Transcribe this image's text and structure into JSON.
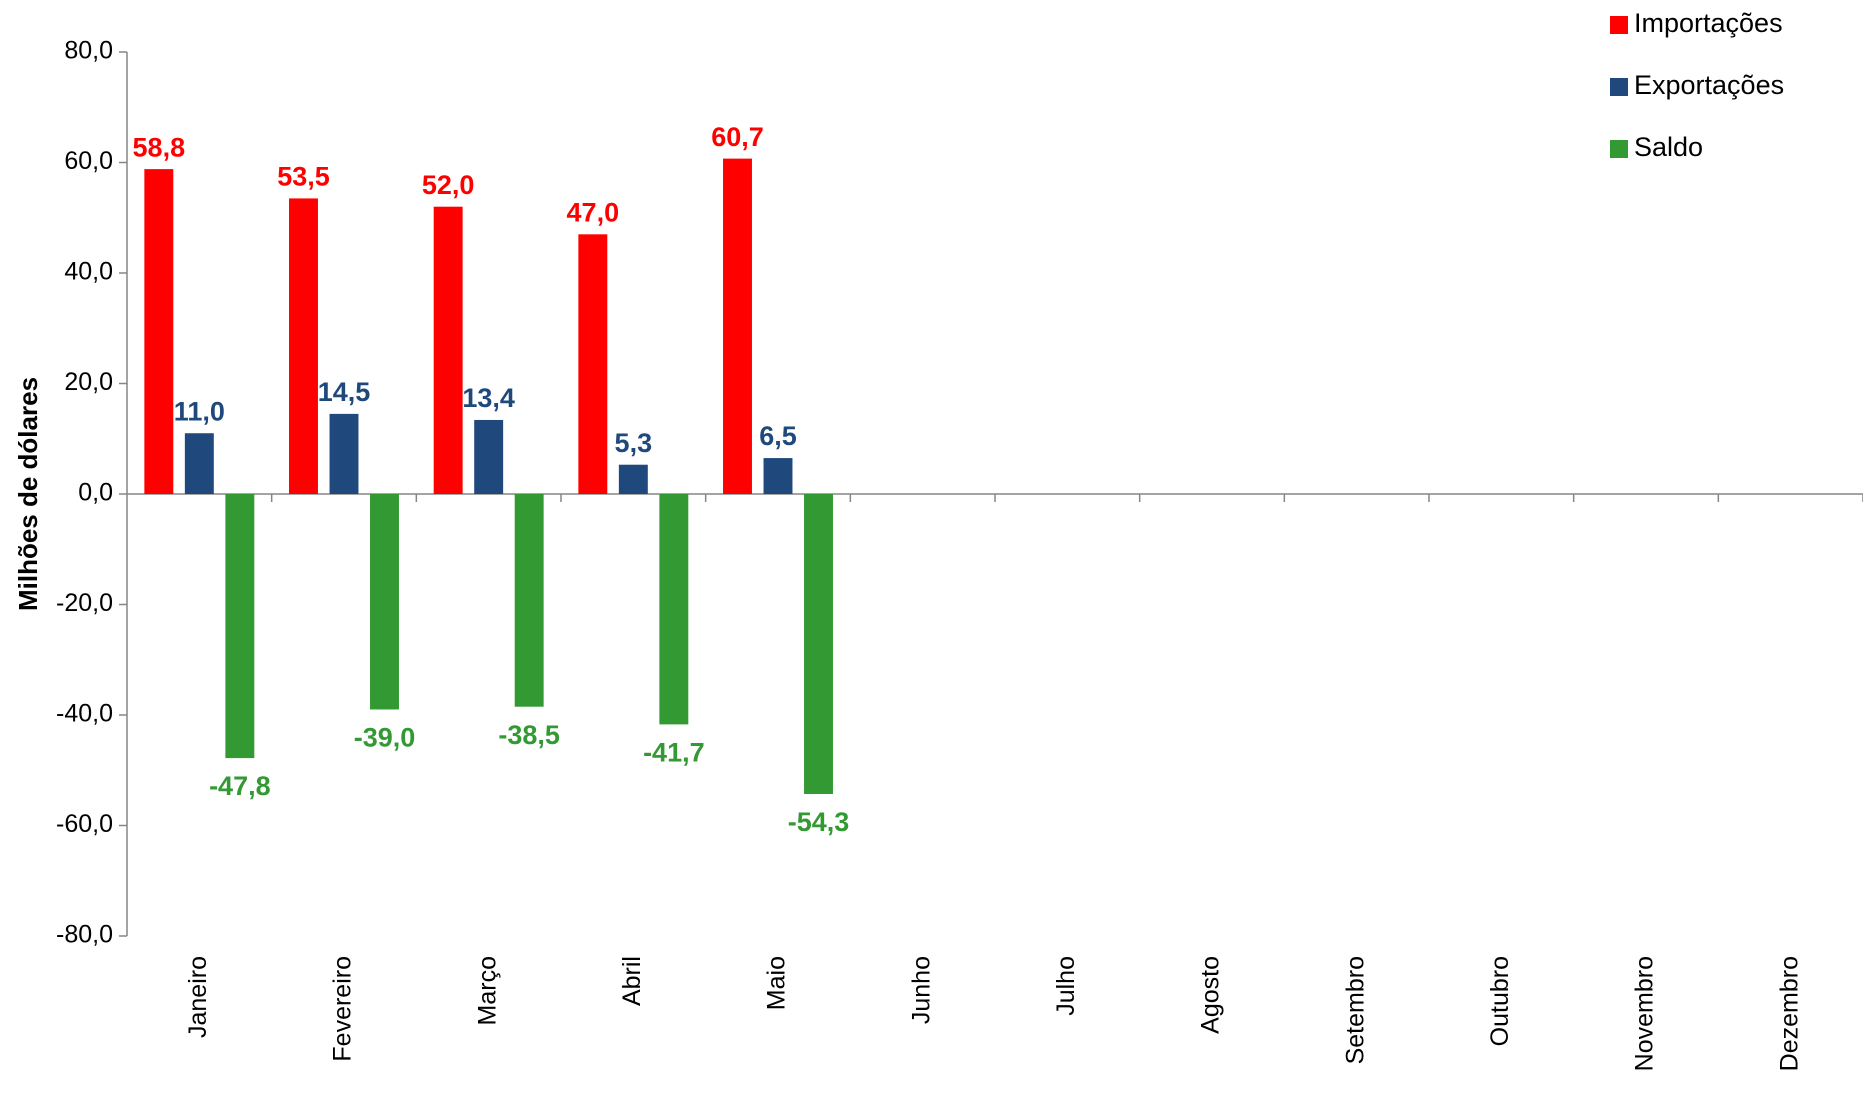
{
  "chart_data": {
    "type": "bar",
    "y_label": "Milhões de dólares",
    "categories": [
      "Janeiro",
      "Fevereiro",
      "Março",
      "Abril",
      "Maio",
      "Junho",
      "Julho",
      "Agosto",
      "Setembro",
      "Outubro",
      "Novembro",
      "Dezembro"
    ],
    "series": [
      {
        "name": "Importações",
        "color": "#ff0000",
        "values": [
          58.8,
          53.5,
          52.0,
          47.0,
          60.7,
          null,
          null,
          null,
          null,
          null,
          null,
          null
        ],
        "value_labels": [
          "58,8",
          "53,5",
          "52,0",
          "47,0",
          "60,7",
          null,
          null,
          null,
          null,
          null,
          null,
          null
        ]
      },
      {
        "name": "Exportações",
        "color": "#1f497d",
        "values": [
          11.0,
          14.5,
          13.4,
          5.3,
          6.5,
          null,
          null,
          null,
          null,
          null,
          null,
          null
        ],
        "value_labels": [
          "11,0",
          "14,5",
          "13,4",
          "5,3",
          "6,5",
          null,
          null,
          null,
          null,
          null,
          null,
          null
        ]
      },
      {
        "name": "Saldo",
        "color": "#339933",
        "values": [
          -47.8,
          -39.0,
          -38.5,
          -41.7,
          -54.3,
          null,
          null,
          null,
          null,
          null,
          null,
          null
        ],
        "value_labels": [
          "-47,8",
          "-39,0",
          "-38,5",
          "-41,7",
          "-54,3",
          null,
          null,
          null,
          null,
          null,
          null,
          null
        ]
      }
    ],
    "ylim": [
      -80,
      80
    ],
    "yticks": [
      {
        "value": -80,
        "label": "-80,0"
      },
      {
        "value": -60,
        "label": "-60,0"
      },
      {
        "value": -40,
        "label": "-40,0"
      },
      {
        "value": -20,
        "label": "-20,0"
      },
      {
        "value": 0,
        "label": "0,0"
      },
      {
        "value": 20,
        "label": "20,0"
      },
      {
        "value": 40,
        "label": "40,0"
      },
      {
        "value": 60,
        "label": "60,0"
      },
      {
        "value": 80,
        "label": "80,0"
      }
    ],
    "legend": "top-right"
  }
}
